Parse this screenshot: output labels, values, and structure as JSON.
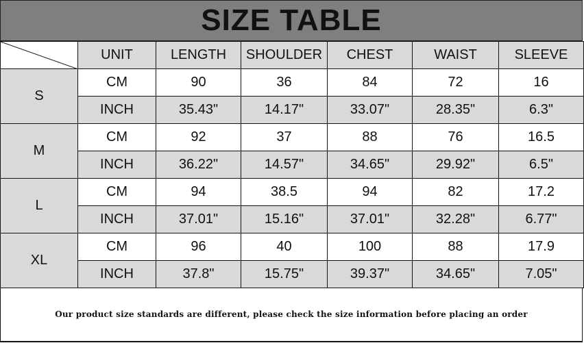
{
  "title": "SIZE TABLE",
  "headers": [
    "UNIT",
    "LENGTH",
    "SHOULDER",
    "CHEST",
    "WAIST",
    "SLEEVE"
  ],
  "sizes": [
    {
      "size": "S",
      "rows": [
        {
          "unit": "CM",
          "values": [
            "90",
            "36",
            "84",
            "72",
            "16"
          ]
        },
        {
          "unit": "INCH",
          "values": [
            "35.43\"",
            "14.17\"",
            "33.07\"",
            "28.35\"",
            "6.3\""
          ]
        }
      ]
    },
    {
      "size": "M",
      "rows": [
        {
          "unit": "CM",
          "values": [
            "92",
            "37",
            "88",
            "76",
            "16.5"
          ]
        },
        {
          "unit": "INCH",
          "values": [
            "36.22\"",
            "14.57\"",
            "34.65\"",
            "29.92\"",
            "6.5\""
          ]
        }
      ]
    },
    {
      "size": "L",
      "rows": [
        {
          "unit": "CM",
          "values": [
            "94",
            "38.5",
            "94",
            "82",
            "17.2"
          ]
        },
        {
          "unit": "INCH",
          "values": [
            "37.01\"",
            "15.16\"",
            "37.01\"",
            "32.28\"",
            "6.77\""
          ]
        }
      ]
    },
    {
      "size": "XL",
      "rows": [
        {
          "unit": "CM",
          "values": [
            "96",
            "40",
            "100",
            "88",
            "17.9"
          ]
        },
        {
          "unit": "INCH",
          "values": [
            "37.8\"",
            "15.75\"",
            "39.37\"",
            "34.65\"",
            "7.05\""
          ]
        }
      ]
    }
  ],
  "footer": "Our product size standards are different, please check the size information before placing an order",
  "colors": {
    "title_band": "#7f7f7f",
    "shaded_cell": "#d9d9d9"
  }
}
